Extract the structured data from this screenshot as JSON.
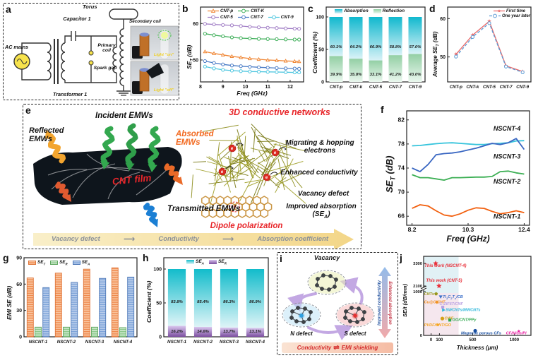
{
  "panels": {
    "a": {
      "letter": "a",
      "labels": {
        "torus": "Torus",
        "secondary_coil": "Secondary coil",
        "capacitor": "Capacitor 1",
        "ac_mains": "AC mains",
        "primary_coil": "Primary coil",
        "spark_gap": "Spark gap",
        "transformer": "Transformer 1",
        "light_on": "Light \"on\"",
        "light_off": "Light \"off\""
      }
    },
    "b": {
      "letter": "b"
    },
    "c": {
      "letter": "c"
    },
    "d": {
      "letter": "d"
    },
    "e": {
      "letter": "e",
      "labels": {
        "reflected": "Reflected EMWs",
        "incident": "Incident EMWs",
        "absorbed": "Absorbed EMWs",
        "cnt_film": "CNT film",
        "transmitted": "Transmitted EMWs",
        "networks": "3D conductive networks",
        "migrating": "Migrating & hopping electrons",
        "enhanced": "Enhanced conductivity",
        "vacancy": "Vacancy defect",
        "improved": "Improved absorption (SE_A)",
        "dipole": "Dipole polarization",
        "electron": "e",
        "vacancy_v": "V",
        "flow": [
          "Vacancy defect",
          "Conductivity",
          "Absorption coefficient"
        ],
        "flow_arrow": "⟶"
      }
    },
    "f": {
      "letter": "f"
    },
    "g": {
      "letter": "g"
    },
    "h": {
      "letter": "h"
    },
    "i": {
      "letter": "i",
      "labels": {
        "vacancy": "Vacancy",
        "n_defect": "N defect",
        "s_defect": "S defect",
        "improved_conductivity": "Improved conductivity",
        "enhanced_absorption": "Enhanced absorption",
        "conductivity": "Conductivity",
        "equilibrium": "⇌",
        "emi": "EMI shielding"
      }
    },
    "j": {
      "letter": "j"
    }
  },
  "chart_data": [
    {
      "id": "b",
      "type": "line",
      "xlabel": "Freq (GHz)",
      "ylabel": "SE_T (dB)",
      "xlim": [
        8.0,
        12.6
      ],
      "ylim": [
        44,
        64.5
      ],
      "xticks": [
        8,
        9,
        10,
        11,
        12
      ],
      "yticks": [
        50,
        60
      ],
      "x": [
        8.2,
        8.6,
        9.0,
        9.4,
        9.8,
        10.2,
        10.6,
        11.0,
        11.4,
        11.8,
        12.2,
        12.4
      ],
      "series": [
        {
          "name": "CNT-p",
          "color": "#F08736",
          "marker": "tri",
          "values": [
            52.3,
            51.8,
            51.4,
            51.0,
            50.7,
            50.4,
            50.2,
            50.0,
            49.9,
            49.75,
            49.65,
            49.6
          ]
        },
        {
          "name": "CNT-K",
          "color": "#3FAF5A",
          "marker": "circle",
          "values": [
            57.2,
            56.8,
            56.5,
            56.2,
            56.0,
            55.9,
            55.8,
            55.75,
            55.7,
            55.65,
            55.6,
            55.6
          ]
        },
        {
          "name": "CNT-5",
          "color": "#A27FC6",
          "marker": "circle",
          "values": [
            59.9,
            59.75,
            59.6,
            59.5,
            59.3,
            59.1,
            58.95,
            58.85,
            58.75,
            58.65,
            58.6,
            58.55
          ]
        },
        {
          "name": "CNT-7",
          "color": "#4A7CC6",
          "marker": "circle",
          "values": [
            49.7,
            49.2,
            48.8,
            48.5,
            48.3,
            48.15,
            48.0,
            47.9,
            47.8,
            47.7,
            47.65,
            47.6
          ]
        },
        {
          "name": "CNT-9",
          "color": "#4FC7E0",
          "marker": "circle",
          "values": [
            48.2,
            47.7,
            47.3,
            47.1,
            46.95,
            46.85,
            46.8,
            46.75,
            46.7,
            46.65,
            46.6,
            46.6
          ]
        }
      ]
    },
    {
      "id": "c",
      "type": "stacked",
      "ylabel": "Coefficient (%)",
      "yticks": [
        0,
        50,
        100
      ],
      "categories": [
        "CNT-p",
        "CNT-k",
        "CNT-5",
        "CNT-7",
        "CNT-9"
      ],
      "series": [
        {
          "name": "Absorption",
          "top": "#10B8CE",
          "bottom": "#D9F2F7",
          "values": [
            60.1,
            64.2,
            66.9,
            58.8,
            57.0
          ]
        },
        {
          "name": "Reflection",
          "top": "#93CFA4",
          "bottom": "#EAF7EE",
          "values": [
            39.9,
            35.8,
            33.1,
            41.2,
            43.0
          ]
        }
      ]
    },
    {
      "id": "d",
      "type": "catline",
      "ylabel": "Average SE_T (dB)",
      "yticks": [
        50,
        60
      ],
      "ylim": [
        43.5,
        63
      ],
      "categories": [
        "CNT-p",
        "CNT-k",
        "CNT-5",
        "CNT-7",
        "CNT-9"
      ],
      "series": [
        {
          "name": "First time",
          "color": "#E96A6A",
          "marker": "star",
          "values": [
            50.7,
            55.7,
            59.3,
            47.7,
            46.2
          ]
        },
        {
          "name": "One year later",
          "color": "#5B9BD5",
          "dash": "4 2.5",
          "marker": "circle",
          "values": [
            50.1,
            55.2,
            58.8,
            47.5,
            46.0
          ]
        }
      ]
    },
    {
      "id": "f",
      "type": "line",
      "xlabel": "Freq (GHz)",
      "ylabel": "SE_T (dB)",
      "xlim": [
        8.0,
        12.6
      ],
      "ylim": [
        64.5,
        83.5
      ],
      "xticks": [
        8.2,
        10.3,
        12.4
      ],
      "yticks": [
        66,
        70,
        74,
        78,
        82
      ],
      "x": [
        8.2,
        8.5,
        8.8,
        9.1,
        9.4,
        9.7,
        10.0,
        10.3,
        10.6,
        10.9,
        11.2,
        11.5,
        11.8,
        12.1,
        12.4
      ],
      "series": [
        {
          "name": "NSCNT-4",
          "color": "#35C4DC",
          "label_xy": [
            11.25,
            80.2
          ],
          "values": [
            77.7,
            77.75,
            77.9,
            78.05,
            78.15,
            78.2,
            78.1,
            78.0,
            77.9,
            77.9,
            78.05,
            78.1,
            78.2,
            78.5,
            78.55
          ]
        },
        {
          "name": "NSCNT-3",
          "color": "#3A67C2",
          "label_xy": [
            11.25,
            75.6
          ],
          "values": [
            74.0,
            73.4,
            74.6,
            76.2,
            76.4,
            76.5,
            76.7,
            77.0,
            77.3,
            77.7,
            78.1,
            77.9,
            78.2,
            78.9,
            77.1
          ]
        },
        {
          "name": "NSCNT-2",
          "color": "#3CAF54",
          "label_xy": [
            11.25,
            71.4
          ],
          "values": [
            72.9,
            72.4,
            72.4,
            72.2,
            72.0,
            72.4,
            72.4,
            72.45,
            72.5,
            72.5,
            72.6,
            73.4,
            73.5,
            73.2,
            73.0
          ]
        },
        {
          "name": "NSCNT-1",
          "color": "#F2600F",
          "label_xy": [
            11.25,
            65.6
          ],
          "values": [
            67.3,
            67.9,
            67.7,
            66.9,
            66.2,
            66.0,
            66.4,
            67.0,
            67.4,
            67.3,
            66.8,
            66.4,
            66.6,
            66.9,
            66.6
          ]
        }
      ]
    },
    {
      "id": "g",
      "type": "bars",
      "ylabel": "EMI SE (dB)",
      "yticks": [
        0,
        30,
        60,
        90
      ],
      "ylim": [
        0,
        90
      ],
      "categories": [
        "NSCNT-1",
        "NSCNT-2",
        "NSCNT-3",
        "NSCNT-4"
      ],
      "series": [
        {
          "name": "SE_T",
          "color": "#F9C49E",
          "stripe": "#EF8A4E",
          "border": "#E0763A",
          "values": [
            67,
            72.5,
            77,
            78.5
          ]
        },
        {
          "name": "SE_R",
          "color": "#CBE8CB",
          "stripe": "#8CC88C",
          "border": "#61A861",
          "values": [
            11,
            11,
            11,
            10.5
          ]
        },
        {
          "name": "SE_A",
          "color": "#B9CDEB",
          "stripe": "#7DA3D8",
          "border": "#4E79B8",
          "values": [
            56,
            62,
            66.5,
            68
          ]
        }
      ]
    },
    {
      "id": "h",
      "type": "stacked",
      "ylabel": "Coefficient (%)",
      "yticks": [
        0,
        50,
        100
      ],
      "categories": [
        "NSCNT-1",
        "NSCNT-2",
        "NSCNT-3",
        "NSCNT-4"
      ],
      "series": [
        {
          "name": "SE_A",
          "top": "#12BCCB",
          "bottom": "#DFF4F7",
          "values": [
            83.8,
            85.4,
            86.3,
            86.9
          ]
        },
        {
          "name": "SE_R",
          "top": "#D9C6EE",
          "bottom": "#7C4FA0",
          "values": [
            16.2,
            14.6,
            13.7,
            13.1
          ]
        }
      ]
    },
    {
      "id": "j",
      "type": "scatter",
      "xlabel": "Thickness (μm)",
      "ylabel": "SE/t (dB/mm)",
      "xticks": [
        0,
        100,
        500,
        1000
      ],
      "yticks_lower": [
        0,
        1000
      ],
      "yticks_upper": [
        2100,
        3300
      ],
      "points": [
        {
          "label": "This work (NSCNT-4)",
          "x": 55,
          "y": 3300,
          "lx": -80,
          "ly": 3120,
          "color": "#E8303A",
          "marker": "star",
          "big": true
        },
        {
          "label": "This work (CNT-5)",
          "x": 95,
          "y": 2100,
          "lx": -60,
          "ly": 2320,
          "color": "#E8303A",
          "marker": "star",
          "big": true
        },
        {
          "label": "CNTs",
          "x": 60,
          "y": 950,
          "lx": -85,
          "ly": 920,
          "color": "#97971E",
          "marker": "pentagon"
        },
        {
          "label": "Ti_3C_2T_x/CB",
          "x": 115,
          "y": 880,
          "lx": 140,
          "ly": 855,
          "color": "#3B6FC9",
          "marker": "tridown"
        },
        {
          "label": "Cu@C/CNT",
          "x": 70,
          "y": 760,
          "lx": -85,
          "ly": 735,
          "color": "#F19222",
          "marker": "diamond"
        },
        {
          "label": "C-ZIF67/CNF",
          "x": 140,
          "y": 645,
          "lx": 100,
          "ly": 690,
          "color": "#B9A0E2",
          "marker": "square"
        },
        {
          "label": "SWCNTs/MWCNTs",
          "x": 150,
          "y": 580,
          "lx": 175,
          "ly": 558,
          "color": "#2BB7DB",
          "marker": "triright"
        },
        {
          "label": "CWF",
          "x": 135,
          "y": 385,
          "lx": 160,
          "ly": 362,
          "color": "#D4A017",
          "marker": "circle"
        },
        {
          "label": "GO/CNT/PPy",
          "x": 225,
          "y": 350,
          "lx": 255,
          "ly": 328,
          "color": "#2FA84F",
          "marker": "square"
        },
        {
          "label": "PVDF/CNT/GO",
          "x": 80,
          "y": 245,
          "lx": -85,
          "ly": 212,
          "color": "#F5A623",
          "marker": "star"
        },
        {
          "label": "Magnetic porous CFs",
          "x": 530,
          "y": 105,
          "lx": 360,
          "ly": 28,
          "color": "#1A4FA0",
          "marker": "circle"
        },
        {
          "label": "CF/NiCo/PI",
          "x": 1055,
          "y": 95,
          "lx": 900,
          "ly": 22,
          "color": "#E81FA2",
          "marker": "star"
        }
      ]
    }
  ]
}
